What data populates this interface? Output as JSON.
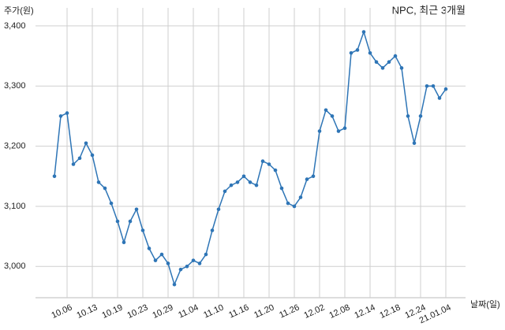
{
  "chart_data": {
    "type": "line",
    "title": "NPC, 최근 3개월",
    "y_label": "주가(원)",
    "x_label": "날짜(일)",
    "categories": [
      null,
      null,
      "10.06",
      null,
      null,
      null,
      "10.13",
      null,
      null,
      null,
      "10.19",
      null,
      null,
      null,
      "10.23",
      null,
      null,
      null,
      "10.29",
      null,
      null,
      null,
      "11.04",
      null,
      null,
      null,
      "11.10",
      null,
      null,
      null,
      "11.16",
      null,
      null,
      null,
      "11.20",
      null,
      null,
      null,
      "11.26",
      null,
      null,
      null,
      "12.02",
      null,
      null,
      null,
      "12.08",
      null,
      null,
      null,
      "12.14",
      null,
      null,
      null,
      "12.18",
      null,
      null,
      null,
      "12.24",
      null,
      null,
      null,
      "21.01.04"
    ],
    "series": [
      {
        "name": "NPC",
        "color": "#2e75b6",
        "values": [
          3150,
          3250,
          3255,
          3170,
          3180,
          3205,
          3185,
          3140,
          3130,
          3105,
          3075,
          3040,
          3075,
          3095,
          3060,
          3030,
          3010,
          3020,
          3005,
          2970,
          2995,
          3000,
          3010,
          3005,
          3020,
          3060,
          3095,
          3125,
          3135,
          3140,
          3150,
          3140,
          3135,
          3175,
          3170,
          3160,
          3130,
          3105,
          3100,
          3115,
          3145,
          3150,
          3225,
          3260,
          3250,
          3225,
          3230,
          3355,
          3360,
          3390,
          3355,
          3340,
          3330,
          3340,
          3350,
          3330,
          3250,
          3205,
          3250,
          3300,
          3300,
          3280,
          3295
        ]
      }
    ],
    "ylim": [
      2948,
      3430
    ],
    "yticks": [
      {
        "value": 3000,
        "label": "3,000"
      },
      {
        "value": 3100,
        "label": "3,100"
      },
      {
        "value": 3200,
        "label": "3,200"
      },
      {
        "value": 3300,
        "label": "3,300"
      },
      {
        "value": 3400,
        "label": "3,400"
      }
    ],
    "grid": true
  }
}
